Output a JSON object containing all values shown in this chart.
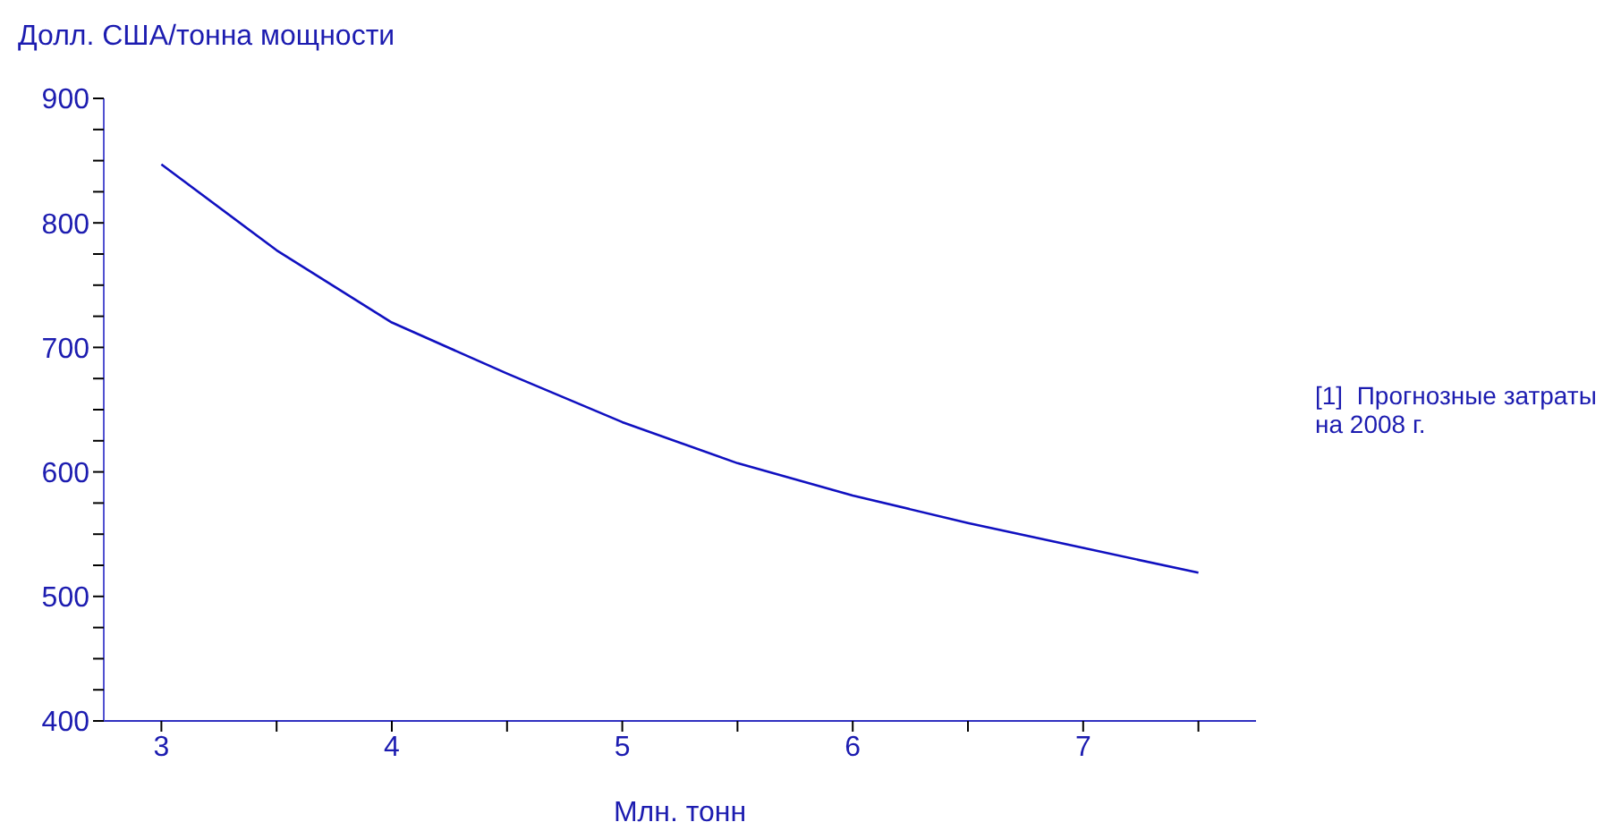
{
  "chart_data": {
    "type": "line",
    "ylabel": "Долл. США/тонна мощности",
    "xlabel": "Млн. тонн",
    "annotations": [
      "[1]  Прогнозные затраты на 2008 г."
    ],
    "x": [
      3,
      3.5,
      4,
      4.5,
      5,
      5.5,
      6,
      6.5,
      7,
      7.5
    ],
    "series": [
      {
        "color": "#1010c0",
        "values": [
          847,
          778,
          720,
          679,
          640,
          607,
          581,
          559,
          539,
          519
        ]
      }
    ],
    "xlim": [
      2.75,
      7.75
    ],
    "xticks": [
      3,
      {
        "value": 3.5,
        "label": null
      },
      4,
      {
        "value": 4.5,
        "label": null
      },
      5,
      {
        "value": 5.5,
        "label": null
      },
      6,
      {
        "value": 6.5,
        "label": null
      },
      7,
      {
        "value": 7.5,
        "label": null
      }
    ],
    "ylim": [
      400,
      900
    ],
    "yticks": [
      400,
      {
        "value": 425,
        "label": null
      },
      {
        "value": 450,
        "label": null
      },
      {
        "value": 475,
        "label": null
      },
      500,
      {
        "value": 525,
        "label": null
      },
      {
        "value": 550,
        "label": null
      },
      {
        "value": 575,
        "label": null
      },
      600,
      {
        "value": 625,
        "label": null
      },
      {
        "value": 650,
        "label": null
      },
      {
        "value": 675,
        "label": null
      },
      700,
      {
        "value": 725,
        "label": null
      },
      {
        "value": 750,
        "label": null
      },
      {
        "value": 775,
        "label": null
      },
      800,
      {
        "value": 825,
        "label": null
      },
      {
        "value": 850,
        "label": null
      },
      {
        "value": 875,
        "label": null
      },
      900
    ],
    "grid": false,
    "legend": false,
    "marker": "none",
    "line_style": "solid"
  }
}
